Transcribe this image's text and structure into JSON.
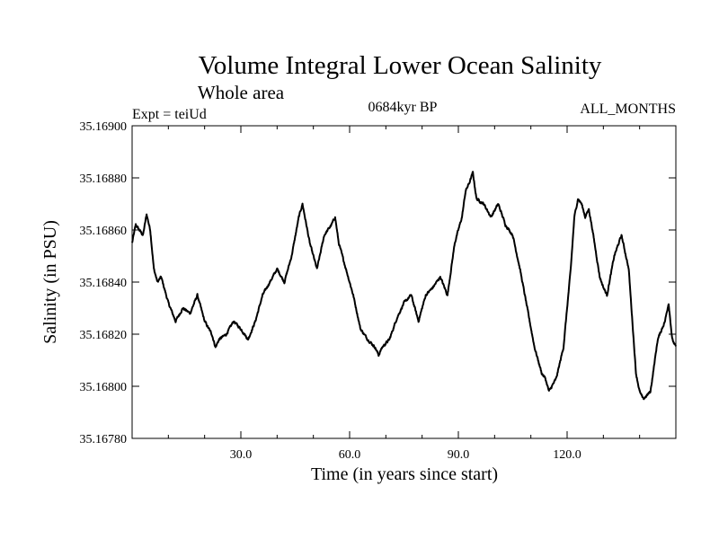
{
  "chart_data": {
    "type": "line",
    "title": "Volume Integral Lower Ocean Salinity",
    "subtitle": "Whole area",
    "annotations": {
      "experiment": "Expt = teiUd",
      "period": "0684kyr BP",
      "months": "ALL_MONTHS"
    },
    "xlabel": "Time (in years since start)",
    "ylabel": "Salinity (in PSU)",
    "xlim": [
      0,
      150
    ],
    "ylim": [
      35.1678,
      35.169
    ],
    "xticks": [
      30,
      60,
      90,
      120
    ],
    "xtick_labels": [
      "30.0",
      "60.0",
      "90.0",
      "120.0"
    ],
    "yticks": [
      35.1678,
      35.168,
      35.1682,
      35.1684,
      35.1686,
      35.1688,
      35.169
    ],
    "ytick_labels": [
      "35.16780",
      "35.16800",
      "35.16820",
      "35.16840",
      "35.16860",
      "35.16880",
      "35.16900"
    ],
    "grid": false,
    "series": [
      {
        "name": "Salinity",
        "anchors_x": [
          0,
          1,
          3,
          4,
          5,
          6,
          7,
          8,
          10,
          12,
          14,
          16,
          18,
          20,
          22,
          23,
          24,
          26,
          28,
          30,
          32,
          34,
          36,
          38,
          40,
          42,
          44,
          46,
          47,
          49,
          51,
          53,
          55,
          56,
          57,
          59,
          61,
          63,
          65,
          67,
          68,
          69,
          71,
          73,
          75,
          77,
          79,
          81,
          83,
          85,
          87,
          89,
          91,
          92,
          93,
          94,
          95,
          97,
          99,
          101,
          103,
          105,
          107,
          109,
          111,
          113,
          114,
          115,
          117,
          119,
          121,
          122,
          123,
          124,
          125,
          126,
          127,
          129,
          130,
          131,
          133,
          135,
          137,
          139,
          140,
          141,
          143,
          145,
          147,
          148,
          149,
          150
        ],
        "anchors_y": [
          35.16855,
          35.16862,
          35.16858,
          35.16866,
          35.1686,
          35.16845,
          35.1684,
          35.16842,
          35.16832,
          35.16825,
          35.1683,
          35.16828,
          35.16835,
          35.16825,
          35.1682,
          35.16815,
          35.16818,
          35.1682,
          35.16825,
          35.16822,
          35.16818,
          35.16825,
          35.16835,
          35.1684,
          35.16845,
          35.1684,
          35.1685,
          35.16865,
          35.1687,
          35.16855,
          35.16845,
          35.16858,
          35.16862,
          35.16865,
          35.16855,
          35.16845,
          35.16835,
          35.16822,
          35.16818,
          35.16815,
          35.16812,
          35.16815,
          35.16818,
          35.16826,
          35.16832,
          35.16835,
          35.16825,
          35.16835,
          35.16838,
          35.16842,
          35.16835,
          35.16855,
          35.16865,
          35.16875,
          35.16878,
          35.16882,
          35.16872,
          35.1687,
          35.16865,
          35.1687,
          35.16862,
          35.16858,
          35.16845,
          35.1683,
          35.16815,
          35.16805,
          35.16803,
          35.16798,
          35.16803,
          35.16815,
          35.16845,
          35.16865,
          35.16872,
          35.1687,
          35.16865,
          35.16868,
          35.1686,
          35.16842,
          35.16838,
          35.16835,
          35.1685,
          35.16858,
          35.16845,
          35.16805,
          35.16798,
          35.16795,
          35.16798,
          35.16818,
          35.16825,
          35.16832,
          35.16818,
          35.16815
        ]
      }
    ]
  }
}
